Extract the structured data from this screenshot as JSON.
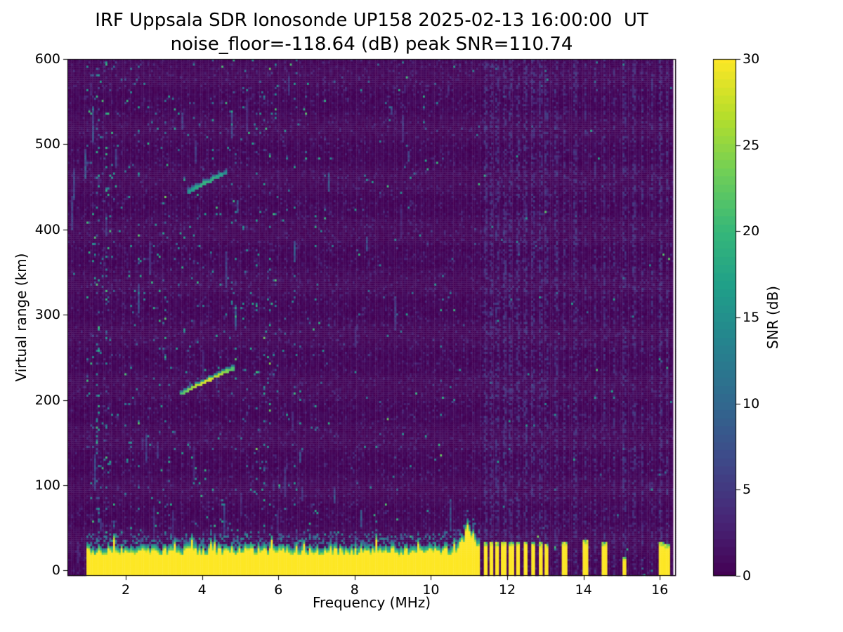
{
  "chart_data": {
    "type": "heatmap",
    "title": "IRF Uppsala SDR Ionosonde UP158 2025-02-13 16:00:00  UT",
    "subtitle": "noise_floor=-118.64 (dB) peak SNR=110.74",
    "noise_floor_db": -118.64,
    "peak_snr_db": 110.74,
    "xlabel": "Frequency (MHz)",
    "ylabel": "Virtual range (km)",
    "xlim": [
      0.47,
      16.42
    ],
    "ylim": [
      -6.2,
      600
    ],
    "xticks": [
      2,
      4,
      6,
      8,
      10,
      12,
      14,
      16
    ],
    "yticks": [
      0,
      100,
      200,
      300,
      400,
      500,
      600
    ],
    "grid": false,
    "legend": false,
    "colorbar": {
      "label": "SNR (dB)",
      "min": 0,
      "max": 30,
      "ticks": [
        0,
        5,
        10,
        15,
        20,
        25,
        30
      ],
      "colormap": "viridis"
    },
    "features": {
      "ground_clutter": {
        "freq_start_mhz": 0.98,
        "freq_end_mhz": 11.28,
        "top_km_base": 29,
        "bump": {
          "center_mhz": 11.0,
          "width_mhz": 0.22,
          "peak_extra_km": 22
        }
      },
      "clutter_pulses_f_w_top": [
        [
          11.44,
          0.07,
          34
        ],
        [
          11.6,
          0.07,
          35
        ],
        [
          11.75,
          0.06,
          33
        ],
        [
          11.92,
          0.08,
          35
        ],
        [
          12.1,
          0.07,
          34
        ],
        [
          12.29,
          0.08,
          35
        ],
        [
          12.49,
          0.07,
          34
        ],
        [
          12.69,
          0.07,
          35
        ],
        [
          12.88,
          0.06,
          33
        ],
        [
          13.04,
          0.06,
          31
        ],
        [
          13.5,
          0.09,
          35
        ],
        [
          14.05,
          0.09,
          36
        ],
        [
          14.55,
          0.09,
          34
        ],
        [
          15.07,
          0.05,
          17
        ],
        [
          16.04,
          0.07,
          34
        ],
        [
          16.2,
          0.06,
          31
        ]
      ],
      "rfi_stripes_mhz": [
        11.44,
        11.6,
        11.75,
        11.92,
        12.1,
        12.29,
        12.49,
        12.69,
        12.88,
        13.04,
        13.27,
        13.5,
        13.77,
        14.05,
        14.3,
        14.55,
        14.8,
        15.07,
        15.31,
        15.55,
        15.8,
        16.04,
        16.2
      ],
      "echo_traces": [
        {
          "f0": 3.45,
          "r0": 208,
          "f1": 4.84,
          "r1": 238,
          "snr": 28
        },
        {
          "f0": 3.62,
          "r0": 444,
          "f1": 4.63,
          "r1": 467,
          "snr": 19
        }
      ],
      "noise": {
        "low_band_max_mhz": 6.5,
        "mid_band_max_mhz": 11.3,
        "low_band_density": 0.016,
        "mid_band_density": 0.007,
        "high_band_density": 0.002
      }
    }
  }
}
